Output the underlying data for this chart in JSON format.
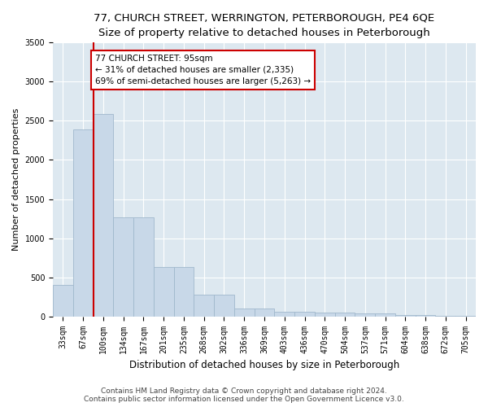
{
  "title1": "77, CHURCH STREET, WERRINGTON, PETERBOROUGH, PE4 6QE",
  "title2": "Size of property relative to detached houses in Peterborough",
  "xlabel": "Distribution of detached houses by size in Peterborough",
  "ylabel": "Number of detached properties",
  "footer1": "Contains HM Land Registry data © Crown copyright and database right 2024.",
  "footer2": "Contains public sector information licensed under the Open Government Licence v3.0.",
  "bar_labels": [
    "33sqm",
    "67sqm",
    "100sqm",
    "134sqm",
    "167sqm",
    "201sqm",
    "235sqm",
    "268sqm",
    "302sqm",
    "336sqm",
    "369sqm",
    "403sqm",
    "436sqm",
    "470sqm",
    "504sqm",
    "537sqm",
    "571sqm",
    "604sqm",
    "638sqm",
    "672sqm",
    "705sqm"
  ],
  "bar_values": [
    400,
    2390,
    2590,
    1265,
    1265,
    630,
    630,
    275,
    275,
    100,
    100,
    60,
    60,
    50,
    50,
    38,
    38,
    15,
    15,
    10,
    10
  ],
  "bar_color": "#c8d8e8",
  "bar_edge_color": "#a0b8cc",
  "annotation_text": "77 CHURCH STREET: 95sqm\n← 31% of detached houses are smaller (2,335)\n69% of semi-detached houses are larger (5,263) →",
  "annotation_box_color": "#ffffff",
  "annotation_box_edge": "#cc0000",
  "vline_color": "#cc0000",
  "ylim": [
    0,
    3500
  ],
  "yticks": [
    0,
    500,
    1000,
    1500,
    2000,
    2500,
    3000,
    3500
  ],
  "background_color": "#dde8f0",
  "grid_color": "#ffffff",
  "title1_fontsize": 9.5,
  "title2_fontsize": 8.5,
  "ylabel_fontsize": 8,
  "xlabel_fontsize": 8.5,
  "tick_fontsize": 7,
  "annot_fontsize": 7.5,
  "footer_fontsize": 6.5
}
